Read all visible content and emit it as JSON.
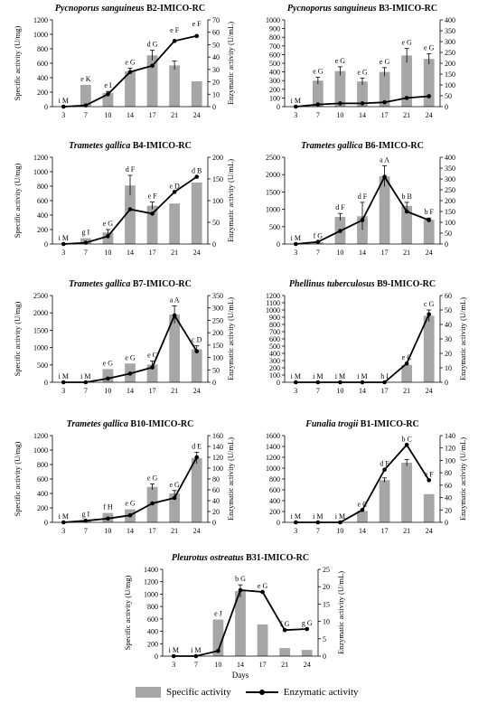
{
  "legend": {
    "bar_label": "Specific activity",
    "line_label": "Enzymatic activity"
  },
  "colors": {
    "bar": "#a6a6a6",
    "line": "#000000"
  },
  "chart_data": [
    {
      "type": "bar+line",
      "title_italic": "Pycnoporus sanguineus",
      "title_rest": " B2-IMICO-RC",
      "xlabel": "",
      "ylabel": "Specific activity (U/mg)",
      "y2label": "Enzymatic activity (U/mL)",
      "categories": [
        "3",
        "7",
        "10",
        "14",
        "17",
        "21",
        "24"
      ],
      "ylim": [
        0,
        1200
      ],
      "yticks": [
        0,
        200,
        400,
        600,
        800,
        1000,
        1200
      ],
      "y2lim": [
        0,
        70
      ],
      "y2ticks": [
        0,
        10,
        20,
        30,
        40,
        50,
        60,
        70
      ],
      "bars": [
        0,
        300,
        190,
        490,
        710,
        570,
        350
      ],
      "bar_err": [
        0,
        0,
        20,
        40,
        70,
        60,
        0
      ],
      "line": [
        0,
        1,
        10,
        28,
        33,
        53,
        57
      ],
      "line_err": [
        0,
        0,
        1,
        2,
        3,
        4,
        5
      ],
      "bar_labels": [
        "i",
        "e",
        "e",
        "e",
        "d",
        "e",
        "e"
      ],
      "line_labels": [
        "M",
        "K",
        "I",
        "G",
        "G",
        "F",
        "F"
      ]
    },
    {
      "type": "bar+line",
      "title_italic": "Pycnoporus sanguineus",
      "title_rest": " B3-IMICO-RC",
      "xlabel": "",
      "ylabel": "",
      "y2label": "",
      "categories": [
        "3",
        "7",
        "10",
        "14",
        "17",
        "21",
        "24"
      ],
      "ylim": [
        0,
        1000
      ],
      "yticks": [
        0,
        100,
        200,
        300,
        400,
        500,
        600,
        700,
        800,
        900,
        1000
      ],
      "y2lim": [
        0,
        400
      ],
      "y2ticks": [
        0,
        50,
        100,
        150,
        200,
        250,
        300,
        350,
        400
      ],
      "bars": [
        0,
        300,
        410,
        290,
        400,
        590,
        550
      ],
      "bar_err": [
        0,
        40,
        50,
        40,
        50,
        80,
        60
      ],
      "line": [
        0,
        10,
        15,
        15,
        20,
        40,
        48
      ],
      "line_err": [
        0,
        0,
        0,
        0,
        0,
        0,
        0
      ],
      "bar_labels": [
        "i",
        "e",
        "e",
        "e",
        "e",
        "e",
        "e"
      ],
      "line_labels": [
        "M",
        "G",
        "G",
        "G",
        "G",
        "G",
        "G"
      ]
    },
    {
      "type": "bar+line",
      "title_italic": "Trametes gallica",
      "title_rest": " B4-IMICO-RC",
      "xlabel": "",
      "ylabel": "Specific activity (U/mg)",
      "y2label": "Enzymatic activity (U/mL)",
      "categories": [
        "3",
        "7",
        "10",
        "14",
        "17",
        "21",
        "24"
      ],
      "ylim": [
        0,
        1200
      ],
      "yticks": [
        0,
        200,
        400,
        600,
        800,
        1000,
        1200
      ],
      "y2lim": [
        0,
        200
      ],
      "y2ticks": [
        0,
        50,
        100,
        150,
        200
      ],
      "bars": [
        0,
        80,
        160,
        810,
        530,
        560,
        850
      ],
      "bar_err": [
        0,
        0,
        40,
        140,
        50,
        0,
        0
      ],
      "line": [
        0,
        3,
        18,
        80,
        70,
        120,
        155
      ],
      "line_err": [
        0,
        0,
        0,
        0,
        0,
        0,
        0
      ],
      "bar_labels": [
        "i",
        "g",
        "e",
        "d",
        "e",
        "e",
        "d"
      ],
      "line_labels": [
        "M",
        "I",
        "G",
        "F",
        "F",
        "D",
        "B"
      ]
    },
    {
      "type": "bar+line",
      "title_italic": "Trametes gallica",
      "title_rest": " B6-IMICO-RC",
      "xlabel": "",
      "ylabel": "",
      "y2label": "",
      "categories": [
        "3",
        "7",
        "10",
        "14",
        "17",
        "21",
        "24"
      ],
      "ylim": [
        0,
        2500
      ],
      "yticks": [
        0,
        500,
        1000,
        1500,
        2000,
        2500
      ],
      "y2lim": [
        0,
        400
      ],
      "y2ticks": [
        0,
        50,
        100,
        150,
        200,
        250,
        300,
        350,
        400
      ],
      "bars": [
        0,
        50,
        780,
        800,
        1950,
        1100,
        700
      ],
      "bar_err": [
        0,
        20,
        100,
        400,
        300,
        100,
        50
      ],
      "line": [
        0,
        10,
        60,
        110,
        310,
        150,
        110
      ],
      "line_err": [
        0,
        0,
        0,
        0,
        0,
        0,
        0
      ],
      "bar_labels": [
        "i",
        "f",
        "d",
        "d",
        "a",
        "b",
        "b"
      ],
      "line_labels": [
        "M",
        "G",
        "F",
        "F",
        "A",
        "B",
        "F"
      ]
    },
    {
      "type": "bar+line",
      "title_italic": "Trametes gallica",
      "title_rest": " B7-IMICO-RC",
      "xlabel": "",
      "ylabel": "Specific activity (U/mg)",
      "y2label": "Enzymatic activity (U/mL)",
      "categories": [
        "3",
        "7",
        "10",
        "14",
        "17",
        "21",
        "24"
      ],
      "ylim": [
        0,
        2500
      ],
      "yticks": [
        0,
        500,
        1000,
        1500,
        2000,
        2500
      ],
      "y2lim": [
        0,
        350
      ],
      "y2ticks": [
        0,
        50,
        100,
        150,
        200,
        250,
        300,
        350
      ],
      "bars": [
        0,
        0,
        380,
        540,
        510,
        1950,
        950
      ],
      "bar_err": [
        0,
        0,
        0,
        0,
        100,
        250,
        100
      ],
      "line": [
        0,
        0,
        15,
        35,
        60,
        270,
        125
      ],
      "line_err": [
        0,
        0,
        0,
        0,
        0,
        0,
        0
      ],
      "bar_labels": [
        "i",
        "i",
        "e",
        "e",
        "e",
        "a",
        "c"
      ],
      "line_labels": [
        "M",
        "M",
        "G",
        "G",
        "C",
        "A",
        "D"
      ]
    },
    {
      "type": "bar+line",
      "title_italic": "Phellinus tuberculosus",
      "title_rest": " B9-IMICO-RC",
      "xlabel": "",
      "ylabel": "",
      "y2label": "Enzymatic activity (U/mL)",
      "categories": [
        "3",
        "7",
        "10",
        "14",
        "17",
        "21",
        "24"
      ],
      "ylim": [
        0,
        1200
      ],
      "yticks": [
        0,
        100,
        200,
        300,
        400,
        500,
        600,
        700,
        800,
        900,
        1000,
        1100,
        1200
      ],
      "y2lim": [
        0,
        60
      ],
      "y2ticks": [
        0,
        10,
        20,
        30,
        40,
        50,
        60
      ],
      "bars": [
        0,
        0,
        0,
        0,
        0,
        240,
        920
      ],
      "bar_err": [
        0,
        0,
        0,
        0,
        0,
        0,
        80
      ],
      "line": [
        0,
        0,
        0,
        0,
        0,
        13,
        47
      ],
      "line_err": [
        0,
        0,
        0,
        0,
        0,
        0,
        0
      ],
      "bar_labels": [
        "i",
        "i",
        "i",
        "i",
        "h",
        "e",
        "c"
      ],
      "line_labels": [
        "M",
        "M",
        "M",
        "M",
        "I",
        "C",
        "G"
      ]
    },
    {
      "type": "bar+line",
      "title_italic": "Trametes gallica",
      "title_rest": " B10-IMICO-RC",
      "xlabel": "",
      "ylabel": "Specific activity (U/mg)",
      "y2label": "Enzymatic activity (U/mL)",
      "categories": [
        "3",
        "7",
        "10",
        "14",
        "17",
        "21",
        "24"
      ],
      "ylim": [
        0,
        1200
      ],
      "yticks": [
        0,
        200,
        400,
        600,
        800,
        1000,
        1200
      ],
      "y2lim": [
        0,
        160
      ],
      "y2ticks": [
        0,
        20,
        40,
        60,
        80,
        100,
        120,
        140,
        160
      ],
      "bars": [
        0,
        30,
        130,
        180,
        490,
        400,
        890
      ],
      "bar_err": [
        0,
        0,
        0,
        0,
        40,
        40,
        80
      ],
      "line": [
        0,
        3,
        7,
        13,
        35,
        45,
        120
      ],
      "line_err": [
        0,
        0,
        0,
        0,
        0,
        0,
        0
      ],
      "bar_labels": [
        "i",
        "g",
        "f",
        "e",
        "e",
        "e",
        "d"
      ],
      "line_labels": [
        "M",
        "I",
        "H",
        "G",
        "G",
        "G",
        "E"
      ]
    },
    {
      "type": "bar+line",
      "title_italic": "Funalia trogii",
      "title_rest": " B1-IMICO-RC",
      "xlabel": "",
      "ylabel": "",
      "y2label": "Enzymatic activity (U/mL)",
      "categories": [
        "3",
        "7",
        "10",
        "14",
        "17",
        "21",
        "24"
      ],
      "ylim": [
        0,
        1600
      ],
      "yticks": [
        0,
        200,
        400,
        600,
        800,
        1000,
        1200,
        1400,
        1600
      ],
      "y2lim": [
        0,
        140
      ],
      "y2ticks": [
        0,
        20,
        40,
        60,
        80,
        100,
        120,
        140
      ],
      "bars": [
        0,
        0,
        0,
        210,
        780,
        1100,
        520
      ],
      "bar_err": [
        0,
        0,
        0,
        0,
        40,
        60,
        0
      ],
      "line": [
        0,
        0,
        0,
        20,
        85,
        125,
        68
      ],
      "line_err": [
        0,
        0,
        0,
        0,
        0,
        0,
        0
      ],
      "bar_labels": [
        "i",
        "i",
        "i",
        "e",
        "d",
        "b",
        "e"
      ],
      "line_labels": [
        "M",
        "M",
        "M",
        "C",
        "F",
        "C",
        "F"
      ]
    },
    {
      "type": "bar+line",
      "title_italic": "Pleurotus ostreatus",
      "title_rest": " B31-IMICO-RC",
      "xlabel": "Days",
      "ylabel": "Specific activity (U/mg)",
      "y2label": "Enzymatic activity (U/mL)",
      "categories": [
        "3",
        "7",
        "10",
        "14",
        "17",
        "21",
        "24"
      ],
      "ylim": [
        0,
        1400
      ],
      "yticks": [
        0,
        200,
        400,
        600,
        800,
        1000,
        1200,
        1400
      ],
      "y2lim": [
        0,
        25
      ],
      "y2ticks": [
        0,
        5,
        10,
        15,
        20,
        25
      ],
      "bars": [
        0,
        0,
        590,
        1050,
        510,
        130,
        100
      ],
      "bar_err": [
        0,
        0,
        0,
        100,
        0,
        0,
        0
      ],
      "line": [
        0,
        0,
        1.5,
        19,
        18.5,
        7.5,
        7.8
      ],
      "line_err": [
        0,
        0,
        0,
        0,
        0,
        0,
        0
      ],
      "bar_labels": [
        "i",
        "i",
        "e",
        "b",
        "e",
        "f",
        "g"
      ],
      "line_labels": [
        "M",
        "M",
        "J",
        "G",
        "G",
        "G",
        "G"
      ]
    }
  ]
}
